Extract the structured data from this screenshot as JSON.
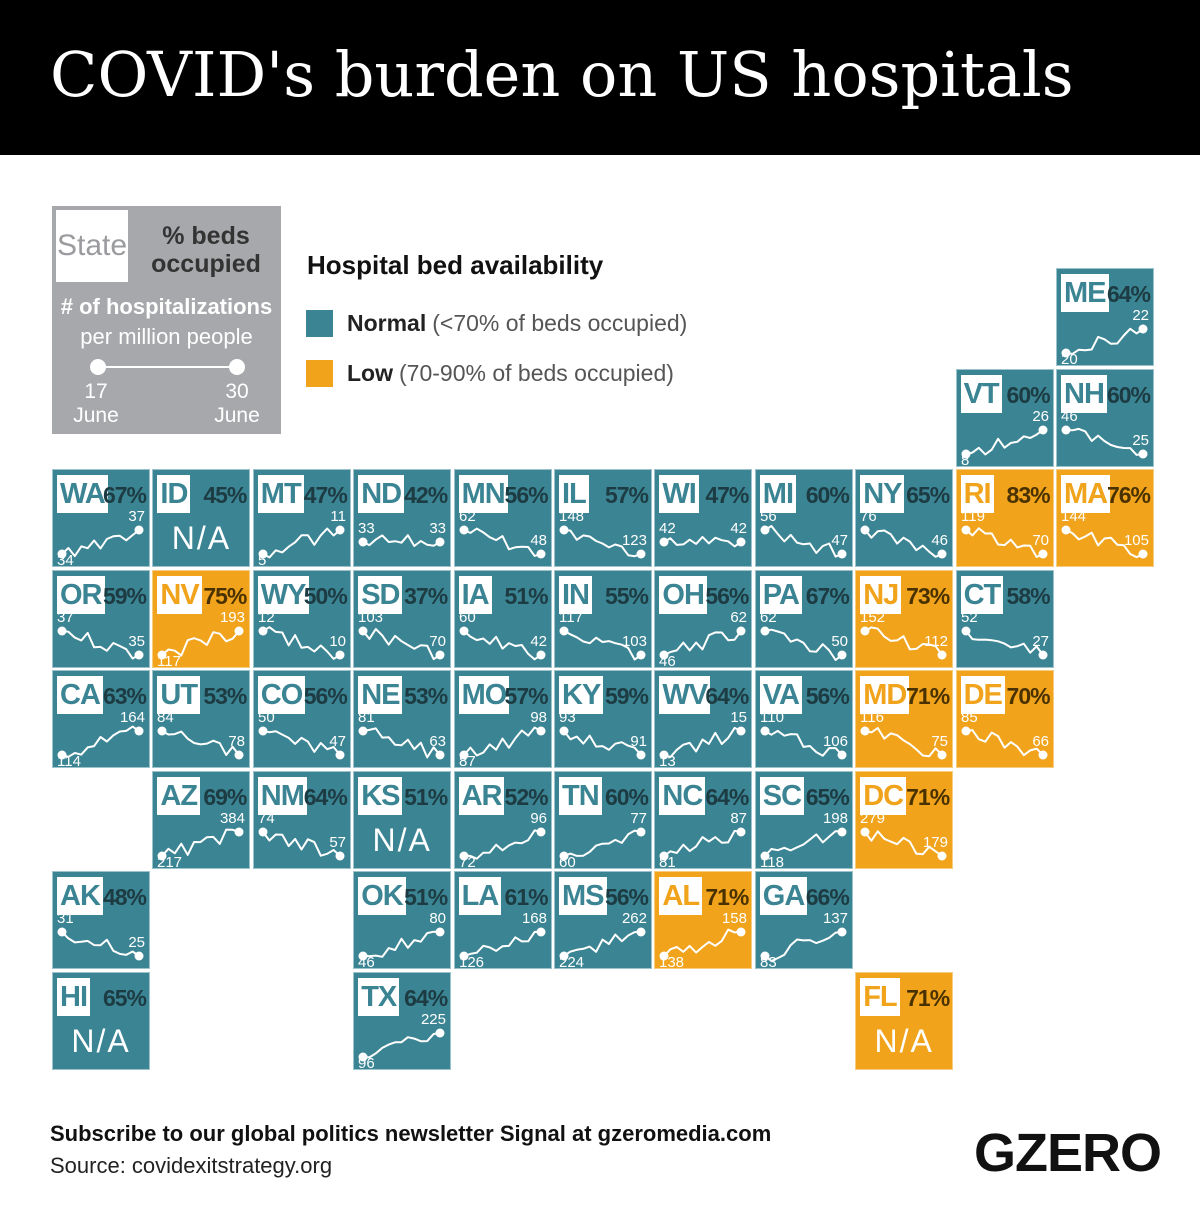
{
  "title": "COVID's burden on US hospitals",
  "key": {
    "state": "State",
    "occupied": "% beds occupied",
    "hospitalizations": "# of hospitalizations",
    "per_million": "per million people",
    "start_day": "17",
    "start_month": "June",
    "end_day": "30",
    "end_month": "June"
  },
  "legend": {
    "title": "Hospital bed availability",
    "items": [
      {
        "label": "Normal",
        "desc": "(<70% of beds occupied)",
        "color": "#3b8493"
      },
      {
        "label": "Low",
        "desc": "(70-90% of beds occupied)",
        "color": "#f0a31b"
      }
    ]
  },
  "chart_data": {
    "type": "tile-map",
    "series_dates": [
      "17 June",
      "30 June"
    ],
    "na_label": "N/A",
    "states": [
      {
        "abbr": "ME",
        "pct": "64%",
        "status": "normal",
        "col": 10,
        "row": 0,
        "start": 20,
        "end": 22
      },
      {
        "abbr": "VT",
        "pct": "60%",
        "status": "normal",
        "col": 9,
        "row": 1,
        "start": 8,
        "end": 26
      },
      {
        "abbr": "NH",
        "pct": "60%",
        "status": "normal",
        "col": 10,
        "row": 1,
        "start": 46,
        "end": 25
      },
      {
        "abbr": "WA",
        "pct": "67%",
        "status": "normal",
        "col": 0,
        "row": 2,
        "start": 34,
        "end": 37
      },
      {
        "abbr": "ID",
        "pct": "45%",
        "status": "normal",
        "col": 1,
        "row": 2,
        "start": null,
        "end": null
      },
      {
        "abbr": "MT",
        "pct": "47%",
        "status": "normal",
        "col": 2,
        "row": 2,
        "start": 5,
        "end": 11
      },
      {
        "abbr": "ND",
        "pct": "42%",
        "status": "normal",
        "col": 3,
        "row": 2,
        "start": 33,
        "end": 33
      },
      {
        "abbr": "MN",
        "pct": "56%",
        "status": "normal",
        "col": 4,
        "row": 2,
        "start": 62,
        "end": 48
      },
      {
        "abbr": "IL",
        "pct": "57%",
        "status": "normal",
        "col": 5,
        "row": 2,
        "start": 148,
        "end": 123
      },
      {
        "abbr": "WI",
        "pct": "47%",
        "status": "normal",
        "col": 6,
        "row": 2,
        "start": 42,
        "end": 42
      },
      {
        "abbr": "MI",
        "pct": "60%",
        "status": "normal",
        "col": 7,
        "row": 2,
        "start": 56,
        "end": 47
      },
      {
        "abbr": "NY",
        "pct": "65%",
        "status": "normal",
        "col": 8,
        "row": 2,
        "start": 76,
        "end": 46
      },
      {
        "abbr": "RI",
        "pct": "83%",
        "status": "low",
        "col": 9,
        "row": 2,
        "start": 119,
        "end": 70
      },
      {
        "abbr": "MA",
        "pct": "76%",
        "status": "low",
        "col": 10,
        "row": 2,
        "start": 144,
        "end": 105
      },
      {
        "abbr": "OR",
        "pct": "59%",
        "status": "normal",
        "col": 0,
        "row": 3,
        "start": 37,
        "end": 35
      },
      {
        "abbr": "NV",
        "pct": "75%",
        "status": "low",
        "col": 1,
        "row": 3,
        "start": 117,
        "end": 193
      },
      {
        "abbr": "WY",
        "pct": "50%",
        "status": "normal",
        "col": 2,
        "row": 3,
        "start": 12,
        "end": 10
      },
      {
        "abbr": "SD",
        "pct": "37%",
        "status": "normal",
        "col": 3,
        "row": 3,
        "start": 103,
        "end": 70
      },
      {
        "abbr": "IA",
        "pct": "51%",
        "status": "normal",
        "col": 4,
        "row": 3,
        "start": 60,
        "end": 42
      },
      {
        "abbr": "IN",
        "pct": "55%",
        "status": "normal",
        "col": 5,
        "row": 3,
        "start": 117,
        "end": 103
      },
      {
        "abbr": "OH",
        "pct": "56%",
        "status": "normal",
        "col": 6,
        "row": 3,
        "start": 46,
        "end": 62
      },
      {
        "abbr": "PA",
        "pct": "67%",
        "status": "normal",
        "col": 7,
        "row": 3,
        "start": 62,
        "end": 50
      },
      {
        "abbr": "NJ",
        "pct": "73%",
        "status": "low",
        "col": 8,
        "row": 3,
        "start": 152,
        "end": 112
      },
      {
        "abbr": "CT",
        "pct": "58%",
        "status": "normal",
        "col": 9,
        "row": 3,
        "start": 52,
        "end": 27
      },
      {
        "abbr": "CA",
        "pct": "63%",
        "status": "normal",
        "col": 0,
        "row": 4,
        "start": 114,
        "end": 164
      },
      {
        "abbr": "UT",
        "pct": "53%",
        "status": "normal",
        "col": 1,
        "row": 4,
        "start": 84,
        "end": 78
      },
      {
        "abbr": "CO",
        "pct": "56%",
        "status": "normal",
        "col": 2,
        "row": 4,
        "start": 50,
        "end": 47
      },
      {
        "abbr": "NE",
        "pct": "53%",
        "status": "normal",
        "col": 3,
        "row": 4,
        "start": 81,
        "end": 63
      },
      {
        "abbr": "MO",
        "pct": "57%",
        "status": "normal",
        "col": 4,
        "row": 4,
        "start": 87,
        "end": 98
      },
      {
        "abbr": "KY",
        "pct": "59%",
        "status": "normal",
        "col": 5,
        "row": 4,
        "start": 93,
        "end": 91
      },
      {
        "abbr": "WV",
        "pct": "64%",
        "status": "normal",
        "col": 6,
        "row": 4,
        "start": 13,
        "end": 15
      },
      {
        "abbr": "VA",
        "pct": "56%",
        "status": "normal",
        "col": 7,
        "row": 4,
        "start": 110,
        "end": 106
      },
      {
        "abbr": "MD",
        "pct": "71%",
        "status": "low",
        "col": 8,
        "row": 4,
        "start": 116,
        "end": 75
      },
      {
        "abbr": "DE",
        "pct": "70%",
        "status": "low",
        "col": 9,
        "row": 4,
        "start": 85,
        "end": 66
      },
      {
        "abbr": "AZ",
        "pct": "69%",
        "status": "normal",
        "col": 1,
        "row": 5,
        "start": 217,
        "end": 384
      },
      {
        "abbr": "NM",
        "pct": "64%",
        "status": "normal",
        "col": 2,
        "row": 5,
        "start": 74,
        "end": 57
      },
      {
        "abbr": "KS",
        "pct": "51%",
        "status": "normal",
        "col": 3,
        "row": 5,
        "start": null,
        "end": null
      },
      {
        "abbr": "AR",
        "pct": "52%",
        "status": "normal",
        "col": 4,
        "row": 5,
        "start": 72,
        "end": 96
      },
      {
        "abbr": "TN",
        "pct": "60%",
        "status": "normal",
        "col": 5,
        "row": 5,
        "start": 60,
        "end": 77
      },
      {
        "abbr": "NC",
        "pct": "64%",
        "status": "normal",
        "col": 6,
        "row": 5,
        "start": 81,
        "end": 87
      },
      {
        "abbr": "SC",
        "pct": "65%",
        "status": "normal",
        "col": 7,
        "row": 5,
        "start": 118,
        "end": 198
      },
      {
        "abbr": "DC",
        "pct": "71%",
        "status": "low",
        "col": 8,
        "row": 5,
        "start": 279,
        "end": 179
      },
      {
        "abbr": "AK",
        "pct": "48%",
        "status": "normal",
        "col": 0,
        "row": 6,
        "start": 31,
        "end": 25
      },
      {
        "abbr": "OK",
        "pct": "51%",
        "status": "normal",
        "col": 3,
        "row": 6,
        "start": 46,
        "end": 80
      },
      {
        "abbr": "LA",
        "pct": "61%",
        "status": "normal",
        "col": 4,
        "row": 6,
        "start": 126,
        "end": 168
      },
      {
        "abbr": "MS",
        "pct": "56%",
        "status": "normal",
        "col": 5,
        "row": 6,
        "start": 224,
        "end": 262
      },
      {
        "abbr": "AL",
        "pct": "71%",
        "status": "low",
        "col": 6,
        "row": 6,
        "start": 138,
        "end": 158
      },
      {
        "abbr": "GA",
        "pct": "66%",
        "status": "normal",
        "col": 7,
        "row": 6,
        "start": 83,
        "end": 137
      },
      {
        "abbr": "HI",
        "pct": "65%",
        "status": "normal",
        "col": 0,
        "row": 7,
        "start": null,
        "end": null
      },
      {
        "abbr": "TX",
        "pct": "64%",
        "status": "normal",
        "col": 3,
        "row": 7,
        "start": 96,
        "end": 225
      },
      {
        "abbr": "FL",
        "pct": "71%",
        "status": "low",
        "col": 8,
        "row": 7,
        "start": null,
        "end": null
      }
    ]
  },
  "footer": {
    "subscribe": "Subscribe to our global politics newsletter Signal at gzeromedia.com",
    "source": "Source: covidexitstrategy.org",
    "logo": "GZERO"
  }
}
